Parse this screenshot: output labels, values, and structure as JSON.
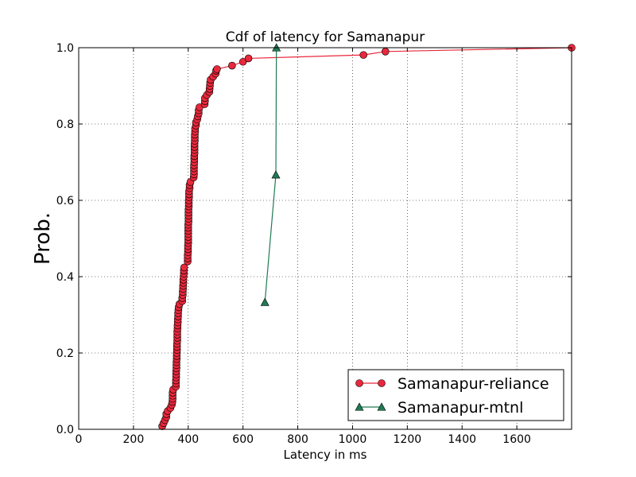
{
  "chart_data": {
    "type": "line",
    "title": "Cdf of latency for Samanapur",
    "xlabel": "Latency in ms",
    "ylabel": "Prob.",
    "xlim": [
      0,
      1800
    ],
    "ylim": [
      0,
      1.0
    ],
    "x_ticks": [
      0,
      200,
      400,
      600,
      800,
      1000,
      1200,
      1400,
      1600
    ],
    "y_ticks": [
      0.0,
      0.2,
      0.4,
      0.6,
      0.8,
      1.0
    ],
    "x_tick_labels": [
      "0",
      "200",
      "400",
      "600",
      "800",
      "1000",
      "1200",
      "1400",
      "1600"
    ],
    "y_tick_labels": [
      "0.0",
      "0.2",
      "0.4",
      "0.6",
      "0.8",
      "1.0"
    ],
    "grid": true,
    "legend_position": "lower-right",
    "series": [
      {
        "name": "Samanapur-reliance",
        "color": "#e8283c",
        "marker": "circle",
        "points": [
          [
            305,
            0.008
          ],
          [
            310,
            0.016
          ],
          [
            315,
            0.024
          ],
          [
            320,
            0.032
          ],
          [
            320,
            0.04
          ],
          [
            325,
            0.048
          ],
          [
            335,
            0.056
          ],
          [
            340,
            0.064
          ],
          [
            342,
            0.072
          ],
          [
            343,
            0.08
          ],
          [
            343,
            0.088
          ],
          [
            343,
            0.096
          ],
          [
            345,
            0.104
          ],
          [
            355,
            0.112
          ],
          [
            355,
            0.12
          ],
          [
            355,
            0.128
          ],
          [
            356,
            0.136
          ],
          [
            356,
            0.144
          ],
          [
            356,
            0.152
          ],
          [
            357,
            0.16
          ],
          [
            357,
            0.168
          ],
          [
            357,
            0.176
          ],
          [
            358,
            0.184
          ],
          [
            358,
            0.192
          ],
          [
            358,
            0.2
          ],
          [
            359,
            0.208
          ],
          [
            359,
            0.216
          ],
          [
            359,
            0.224
          ],
          [
            360,
            0.232
          ],
          [
            360,
            0.24
          ],
          [
            360,
            0.248
          ],
          [
            360,
            0.256
          ],
          [
            361,
            0.264
          ],
          [
            361,
            0.272
          ],
          [
            362,
            0.28
          ],
          [
            362,
            0.288
          ],
          [
            363,
            0.296
          ],
          [
            363,
            0.304
          ],
          [
            364,
            0.312
          ],
          [
            365,
            0.32
          ],
          [
            368,
            0.328
          ],
          [
            378,
            0.336
          ],
          [
            378,
            0.344
          ],
          [
            380,
            0.352
          ],
          [
            380,
            0.36
          ],
          [
            381,
            0.368
          ],
          [
            381,
            0.376
          ],
          [
            382,
            0.384
          ],
          [
            382,
            0.392
          ],
          [
            383,
            0.4
          ],
          [
            384,
            0.408
          ],
          [
            384,
            0.416
          ],
          [
            385,
            0.424
          ],
          [
            398,
            0.44
          ],
          [
            398,
            0.448
          ],
          [
            398,
            0.456
          ],
          [
            399,
            0.464
          ],
          [
            399,
            0.472
          ],
          [
            399,
            0.48
          ],
          [
            400,
            0.488
          ],
          [
            400,
            0.496
          ],
          [
            400,
            0.504
          ],
          [
            400,
            0.512
          ],
          [
            400,
            0.52
          ],
          [
            400,
            0.528
          ],
          [
            400,
            0.536
          ],
          [
            401,
            0.544
          ],
          [
            401,
            0.552
          ],
          [
            401,
            0.56
          ],
          [
            401,
            0.568
          ],
          [
            401,
            0.576
          ],
          [
            402,
            0.584
          ],
          [
            402,
            0.592
          ],
          [
            402,
            0.6
          ],
          [
            403,
            0.608
          ],
          [
            403,
            0.616
          ],
          [
            403,
            0.624
          ],
          [
            405,
            0.632
          ],
          [
            405,
            0.64
          ],
          [
            408,
            0.648
          ],
          [
            420,
            0.66
          ],
          [
            421,
            0.668
          ],
          [
            421,
            0.676
          ],
          [
            421,
            0.684
          ],
          [
            421,
            0.692
          ],
          [
            422,
            0.7
          ],
          [
            422,
            0.708
          ],
          [
            422,
            0.716
          ],
          [
            423,
            0.724
          ],
          [
            423,
            0.732
          ],
          [
            423,
            0.74
          ],
          [
            423,
            0.748
          ],
          [
            424,
            0.756
          ],
          [
            424,
            0.764
          ],
          [
            424,
            0.772
          ],
          [
            425,
            0.78
          ],
          [
            425,
            0.788
          ],
          [
            428,
            0.796
          ],
          [
            428,
            0.804
          ],
          [
            433,
            0.812
          ],
          [
            435,
            0.82
          ],
          [
            438,
            0.828
          ],
          [
            438,
            0.836
          ],
          [
            441,
            0.844
          ],
          [
            460,
            0.852
          ],
          [
            461,
            0.86
          ],
          [
            461,
            0.868
          ],
          [
            468,
            0.876
          ],
          [
            477,
            0.884
          ],
          [
            478,
            0.892
          ],
          [
            479,
            0.9
          ],
          [
            480,
            0.908
          ],
          [
            482,
            0.916
          ],
          [
            491,
            0.924
          ],
          [
            500,
            0.932
          ],
          [
            502,
            0.94
          ],
          [
            505,
            0.944
          ],
          [
            560,
            0.953
          ],
          [
            600,
            0.963
          ],
          [
            620,
            0.972
          ],
          [
            1040,
            0.981
          ],
          [
            1120,
            0.99
          ],
          [
            1800,
            1.0
          ]
        ]
      },
      {
        "name": "Samanapur-mtnl",
        "color": "#207a54",
        "marker": "triangle",
        "points": [
          [
            680,
            0.333
          ],
          [
            720,
            0.667
          ],
          [
            722,
            1.0
          ]
        ]
      }
    ]
  }
}
